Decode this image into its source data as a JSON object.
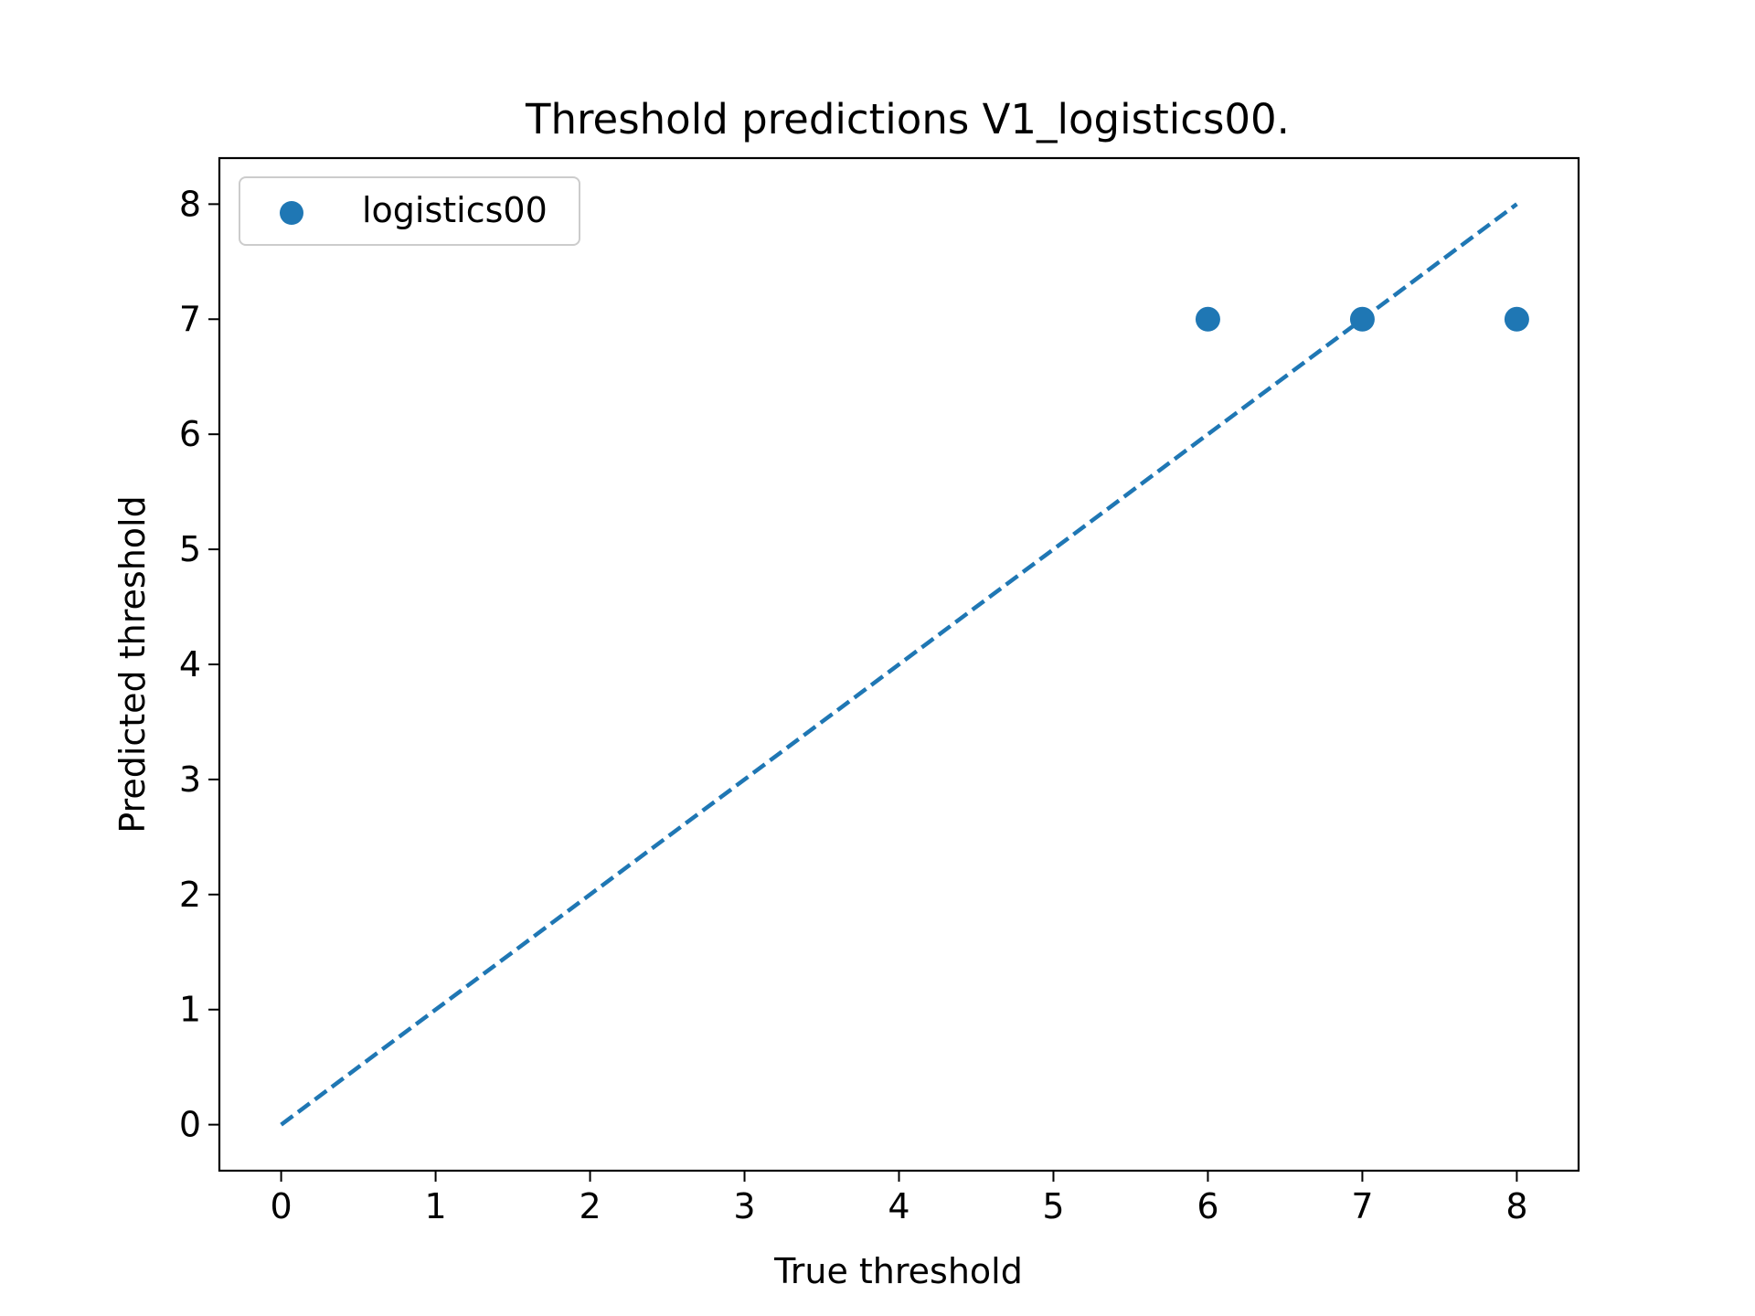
{
  "chart_data": {
    "type": "scatter",
    "title": "Threshold predictions V1_logistics00.",
    "xlabel": "True threshold",
    "ylabel": "Predicted threshold",
    "xlim": [
      -0.4,
      8.4
    ],
    "ylim": [
      -0.4,
      8.4
    ],
    "x_ticks": [
      "0",
      "1",
      "2",
      "3",
      "4",
      "5",
      "6",
      "7",
      "8"
    ],
    "y_ticks": [
      "0",
      "1",
      "2",
      "3",
      "4",
      "5",
      "6",
      "7",
      "8"
    ],
    "grid": false,
    "legend_position": "top-left",
    "series": [
      {
        "name": "logistics00",
        "kind": "scatter",
        "color": "#1f77b4",
        "points": [
          {
            "x": 6,
            "y": 7
          },
          {
            "x": 7,
            "y": 7
          },
          {
            "x": 8,
            "y": 7
          }
        ]
      }
    ],
    "reference_line": {
      "style": "dashed",
      "color": "#1f77b4",
      "from": {
        "x": 0,
        "y": 0
      },
      "to": {
        "x": 8,
        "y": 8
      }
    }
  }
}
